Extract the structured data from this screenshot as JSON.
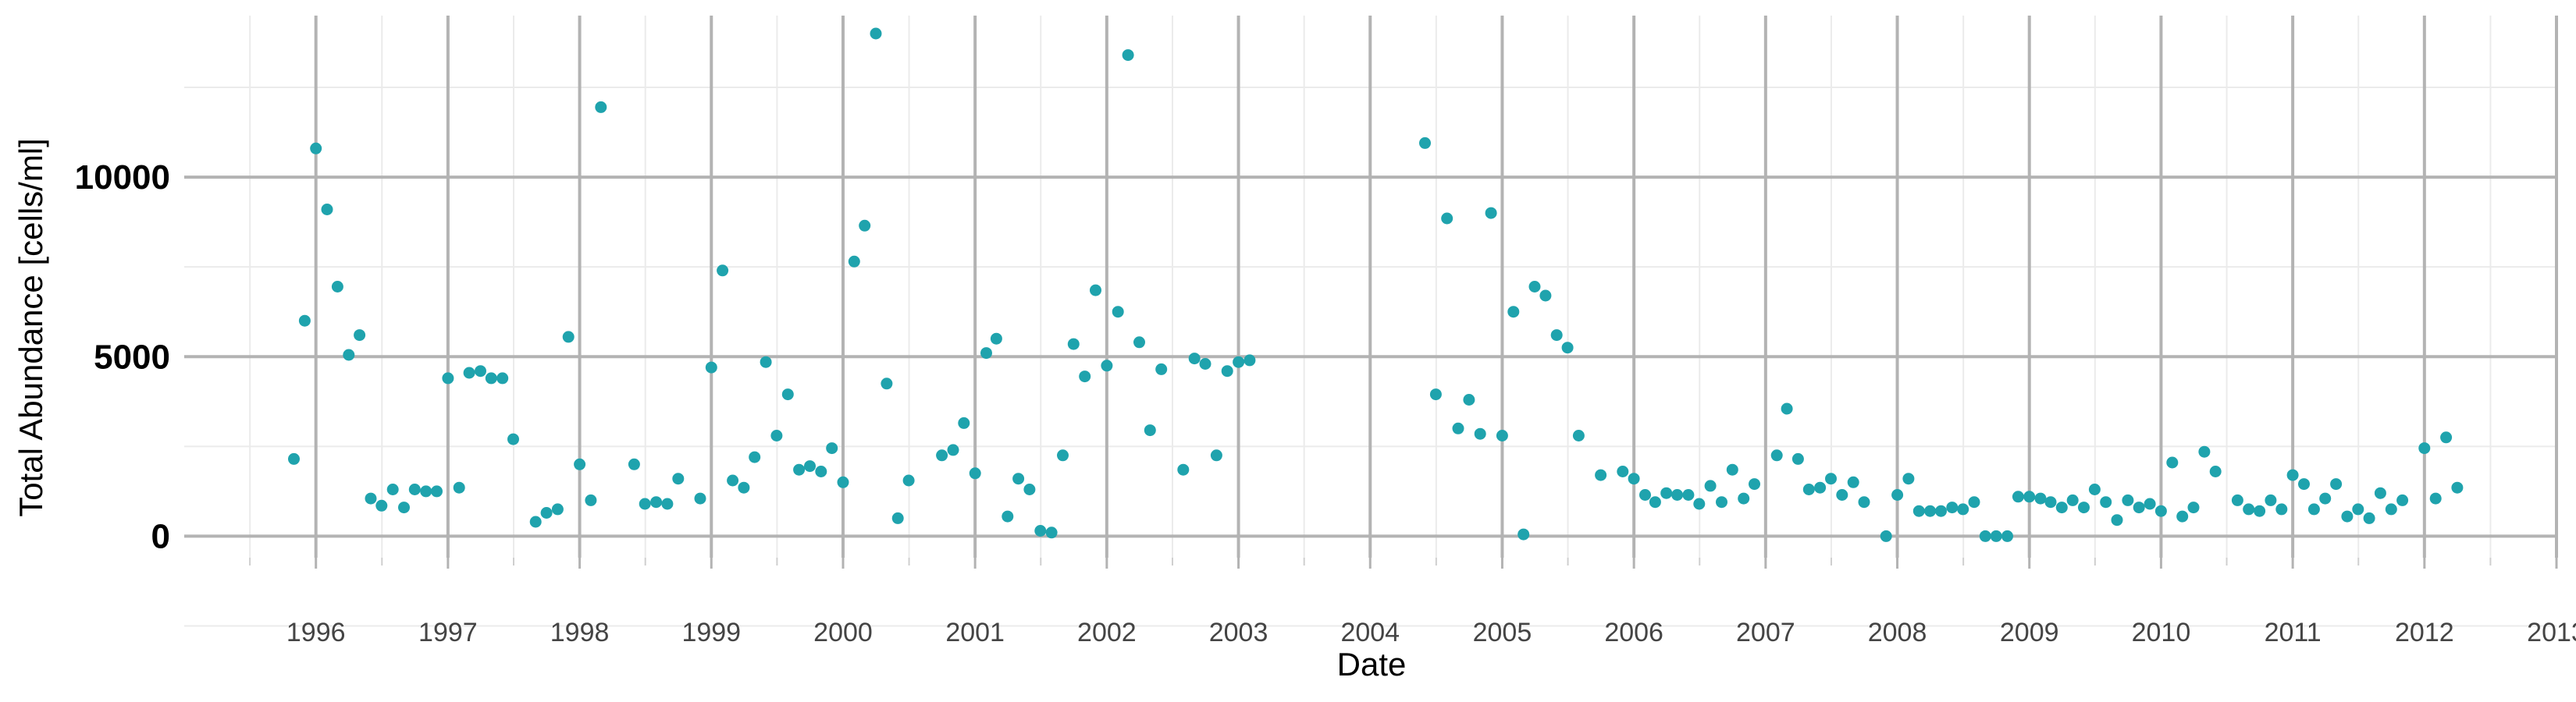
{
  "chart_data": {
    "type": "scatter",
    "xlabel": "Date",
    "ylabel": "Total Abundance [cells/ml]",
    "x_axis": "date",
    "xlim": [
      "1995-01-01",
      "2013-01-01"
    ],
    "ylim": [
      -600,
      14500
    ],
    "x_ticks": [
      "1996",
      "1997",
      "1998",
      "1999",
      "2000",
      "2001",
      "2002",
      "2003",
      "2004",
      "2005",
      "2006",
      "2007",
      "2008",
      "2009",
      "2010",
      "2011",
      "2012",
      "2013"
    ],
    "y_ticks": [
      0,
      5000,
      10000
    ],
    "grid": true,
    "point_color": "#1fa3ad",
    "series": [
      {
        "points": [
          [
            "1995-11-01",
            2150
          ],
          [
            "1995-12-01",
            6000
          ],
          [
            "1996-01-01",
            10800
          ],
          [
            "1996-02-01",
            9100
          ],
          [
            "1996-03-01",
            6950
          ],
          [
            "1996-04-01",
            5050
          ],
          [
            "1996-05-01",
            5600
          ],
          [
            "1996-06-01",
            1050
          ],
          [
            "1996-07-01",
            850
          ],
          [
            "1996-08-01",
            1300
          ],
          [
            "1996-09-01",
            800
          ],
          [
            "1996-10-01",
            1300
          ],
          [
            "1996-11-01",
            1250
          ],
          [
            "1996-12-01",
            1250
          ],
          [
            "1997-01-01",
            4400
          ],
          [
            "1997-02-01",
            1350
          ],
          [
            "1997-03-01",
            4550
          ],
          [
            "1997-04-01",
            4600
          ],
          [
            "1997-05-01",
            4400
          ],
          [
            "1997-06-01",
            4400
          ],
          [
            "1997-07-01",
            2700
          ],
          [
            "1997-09-01",
            400
          ],
          [
            "1997-10-01",
            650
          ],
          [
            "1997-11-01",
            750
          ],
          [
            "1997-12-01",
            5550
          ],
          [
            "1998-01-01",
            2000
          ],
          [
            "1998-02-01",
            1000
          ],
          [
            "1998-03-01",
            11950
          ],
          [
            "1998-06-01",
            2000
          ],
          [
            "1998-07-01",
            900
          ],
          [
            "1998-08-01",
            950
          ],
          [
            "1998-09-01",
            900
          ],
          [
            "1998-10-01",
            1600
          ],
          [
            "1998-12-01",
            1050
          ],
          [
            "1999-01-01",
            4700
          ],
          [
            "1999-02-01",
            7400
          ],
          [
            "1999-03-01",
            1550
          ],
          [
            "1999-04-01",
            1350
          ],
          [
            "1999-05-01",
            2200
          ],
          [
            "1999-06-01",
            4850
          ],
          [
            "1999-07-01",
            2800
          ],
          [
            "1999-08-01",
            3950
          ],
          [
            "1999-09-01",
            1850
          ],
          [
            "1999-10-01",
            1950
          ],
          [
            "1999-11-01",
            1800
          ],
          [
            "1999-12-01",
            2450
          ],
          [
            "2000-01-01",
            1500
          ],
          [
            "2000-02-01",
            7650
          ],
          [
            "2000-03-01",
            8650
          ],
          [
            "2000-04-01",
            14000
          ],
          [
            "2000-05-01",
            4250
          ],
          [
            "2000-06-01",
            500
          ],
          [
            "2000-07-01",
            1550
          ],
          [
            "2000-10-01",
            2250
          ],
          [
            "2000-11-01",
            2400
          ],
          [
            "2000-12-01",
            3150
          ],
          [
            "2001-01-01",
            1750
          ],
          [
            "2001-02-01",
            5100
          ],
          [
            "2001-03-01",
            5500
          ],
          [
            "2001-04-01",
            550
          ],
          [
            "2001-05-01",
            1600
          ],
          [
            "2001-06-01",
            1300
          ],
          [
            "2001-07-01",
            150
          ],
          [
            "2001-08-01",
            100
          ],
          [
            "2001-09-01",
            2250
          ],
          [
            "2001-10-01",
            5350
          ],
          [
            "2001-11-01",
            4450
          ],
          [
            "2001-12-01",
            6850
          ],
          [
            "2002-01-01",
            4750
          ],
          [
            "2002-02-01",
            6250
          ],
          [
            "2002-03-01",
            13400
          ],
          [
            "2002-04-01",
            5400
          ],
          [
            "2002-05-01",
            2950
          ],
          [
            "2002-06-01",
            4650
          ],
          [
            "2002-08-01",
            1850
          ],
          [
            "2002-09-01",
            4950
          ],
          [
            "2002-10-01",
            4800
          ],
          [
            "2002-11-01",
            2250
          ],
          [
            "2002-12-01",
            4600
          ],
          [
            "2003-01-01",
            4850
          ],
          [
            "2003-02-01",
            4900
          ],
          [
            "2004-06-01",
            10950
          ],
          [
            "2004-07-01",
            3950
          ],
          [
            "2004-08-01",
            8850
          ],
          [
            "2004-09-01",
            3000
          ],
          [
            "2004-10-01",
            3800
          ],
          [
            "2004-11-01",
            2850
          ],
          [
            "2004-12-01",
            9000
          ],
          [
            "2005-01-01",
            2800
          ],
          [
            "2005-02-01",
            6250
          ],
          [
            "2005-03-01",
            50
          ],
          [
            "2005-04-01",
            6950
          ],
          [
            "2005-05-01",
            6700
          ],
          [
            "2005-06-01",
            5600
          ],
          [
            "2005-07-01",
            5250
          ],
          [
            "2005-08-01",
            2800
          ],
          [
            "2005-10-01",
            1700
          ],
          [
            "2005-12-01",
            1800
          ],
          [
            "2006-01-01",
            1600
          ],
          [
            "2006-02-01",
            1150
          ],
          [
            "2006-03-01",
            950
          ],
          [
            "2006-04-01",
            1200
          ],
          [
            "2006-05-01",
            1150
          ],
          [
            "2006-06-01",
            1150
          ],
          [
            "2006-07-01",
            900
          ],
          [
            "2006-08-01",
            1400
          ],
          [
            "2006-09-01",
            950
          ],
          [
            "2006-10-01",
            1850
          ],
          [
            "2006-11-01",
            1050
          ],
          [
            "2006-12-01",
            1450
          ],
          [
            "2007-02-01",
            2250
          ],
          [
            "2007-03-01",
            3550
          ],
          [
            "2007-04-01",
            2150
          ],
          [
            "2007-05-01",
            1300
          ],
          [
            "2007-06-01",
            1350
          ],
          [
            "2007-07-01",
            1600
          ],
          [
            "2007-08-01",
            1150
          ],
          [
            "2007-09-01",
            1500
          ],
          [
            "2007-10-01",
            950
          ],
          [
            "2007-12-01",
            0
          ],
          [
            "2008-01-01",
            1150
          ],
          [
            "2008-02-01",
            1600
          ],
          [
            "2008-03-01",
            700
          ],
          [
            "2008-04-01",
            700
          ],
          [
            "2008-05-01",
            700
          ],
          [
            "2008-06-01",
            800
          ],
          [
            "2008-07-01",
            750
          ],
          [
            "2008-08-01",
            950
          ],
          [
            "2008-09-01",
            0
          ],
          [
            "2008-10-01",
            0
          ],
          [
            "2008-11-01",
            0
          ],
          [
            "2008-12-01",
            1100
          ],
          [
            "2009-01-01",
            1100
          ],
          [
            "2009-02-01",
            1050
          ],
          [
            "2009-03-01",
            950
          ],
          [
            "2009-04-01",
            800
          ],
          [
            "2009-05-01",
            1000
          ],
          [
            "2009-06-01",
            800
          ],
          [
            "2009-07-01",
            1300
          ],
          [
            "2009-08-01",
            950
          ],
          [
            "2009-09-01",
            450
          ],
          [
            "2009-10-01",
            1000
          ],
          [
            "2009-11-01",
            800
          ],
          [
            "2009-12-01",
            900
          ],
          [
            "2010-01-01",
            700
          ],
          [
            "2010-02-01",
            2050
          ],
          [
            "2010-03-01",
            550
          ],
          [
            "2010-04-01",
            800
          ],
          [
            "2010-05-01",
            2350
          ],
          [
            "2010-06-01",
            1800
          ],
          [
            "2010-08-01",
            1000
          ],
          [
            "2010-09-01",
            750
          ],
          [
            "2010-10-01",
            700
          ],
          [
            "2010-11-01",
            1000
          ],
          [
            "2010-12-01",
            750
          ],
          [
            "2011-01-01",
            1700
          ],
          [
            "2011-02-01",
            1450
          ],
          [
            "2011-03-01",
            750
          ],
          [
            "2011-04-01",
            1050
          ],
          [
            "2011-05-01",
            1450
          ],
          [
            "2011-06-01",
            550
          ],
          [
            "2011-07-01",
            750
          ],
          [
            "2011-08-01",
            500
          ],
          [
            "2011-09-01",
            1200
          ],
          [
            "2011-10-01",
            750
          ],
          [
            "2011-11-01",
            1000
          ],
          [
            "2012-01-01",
            2450
          ],
          [
            "2012-02-01",
            1050
          ],
          [
            "2012-03-01",
            2750
          ],
          [
            "2012-04-01",
            1350
          ]
        ]
      }
    ]
  }
}
